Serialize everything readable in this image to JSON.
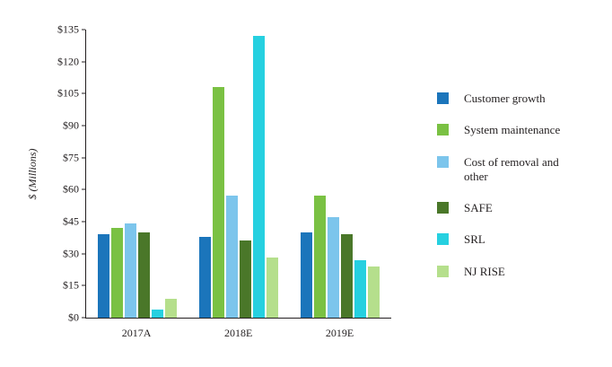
{
  "chart_data": {
    "type": "bar",
    "title": "",
    "xlabel": "",
    "ylabel": "$ (Millions)",
    "categories": [
      "2017A",
      "2018E",
      "2019E"
    ],
    "series": [
      {
        "name": "Customer growth",
        "color": "#1b75bb",
        "values": [
          39,
          38,
          40
        ]
      },
      {
        "name": "System maintenance",
        "color": "#7ac143",
        "values": [
          42,
          108,
          57
        ]
      },
      {
        "name": "Cost of removal and other",
        "color": "#7cc5ec",
        "values": [
          44,
          57,
          47
        ]
      },
      {
        "name": "SAFE",
        "color": "#4a7729",
        "values": [
          40,
          36,
          39
        ]
      },
      {
        "name": "SRL",
        "color": "#26d0e0",
        "values": [
          4,
          132,
          27
        ]
      },
      {
        "name": "NJ RISE",
        "color": "#b5df8c",
        "values": [
          9,
          28,
          24
        ]
      }
    ],
    "ylim": [
      0,
      135
    ],
    "ytick_step": 15,
    "ytick_prefix": "$",
    "grid": false,
    "legend_position": "right"
  }
}
